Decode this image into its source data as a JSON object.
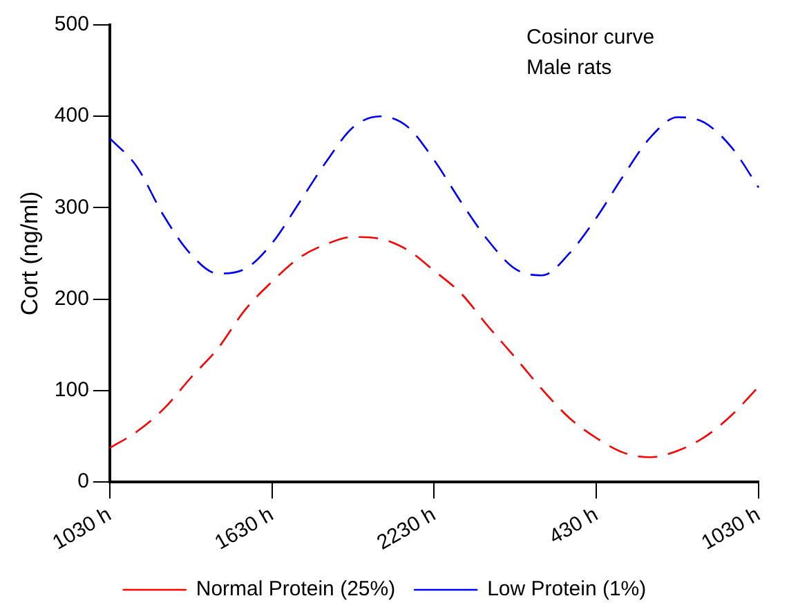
{
  "chart_data": {
    "type": "line",
    "ylabel": "Cort (ng/ml)",
    "annotations": [
      "Cosinor curve",
      "Male rats"
    ],
    "categories": [
      "1030 h",
      null,
      null,
      null,
      null,
      null,
      "1630 h",
      null,
      null,
      null,
      null,
      null,
      "2230 h",
      null,
      null,
      null,
      null,
      null,
      "430 h",
      null,
      null,
      null,
      null,
      null,
      "1030 h"
    ],
    "ylim": [
      0,
      500
    ],
    "yticks": [
      0,
      100,
      200,
      300,
      400,
      500
    ],
    "grid": false,
    "legend": "bottom",
    "marker": "none",
    "line_style": "dashed",
    "series": [
      {
        "name": "Normal Protein (25%)",
        "color": "#ff0000",
        "values": [
          37,
          55,
          80,
          114,
          146,
          188,
          219,
          245,
          260,
          268,
          266,
          254,
          231,
          206,
          170,
          136,
          101,
          70,
          48,
          32,
          27,
          34,
          49,
          73,
          104
        ]
      },
      {
        "name": "Low Protein (1%)",
        "color": "#0000ff",
        "values": [
          376,
          345,
          291,
          249,
          228,
          233,
          261,
          305,
          350,
          388,
          400,
          389,
          352,
          306,
          264,
          233,
          226,
          250,
          289,
          335,
          377,
          399,
          393,
          366,
          322
        ]
      }
    ]
  }
}
